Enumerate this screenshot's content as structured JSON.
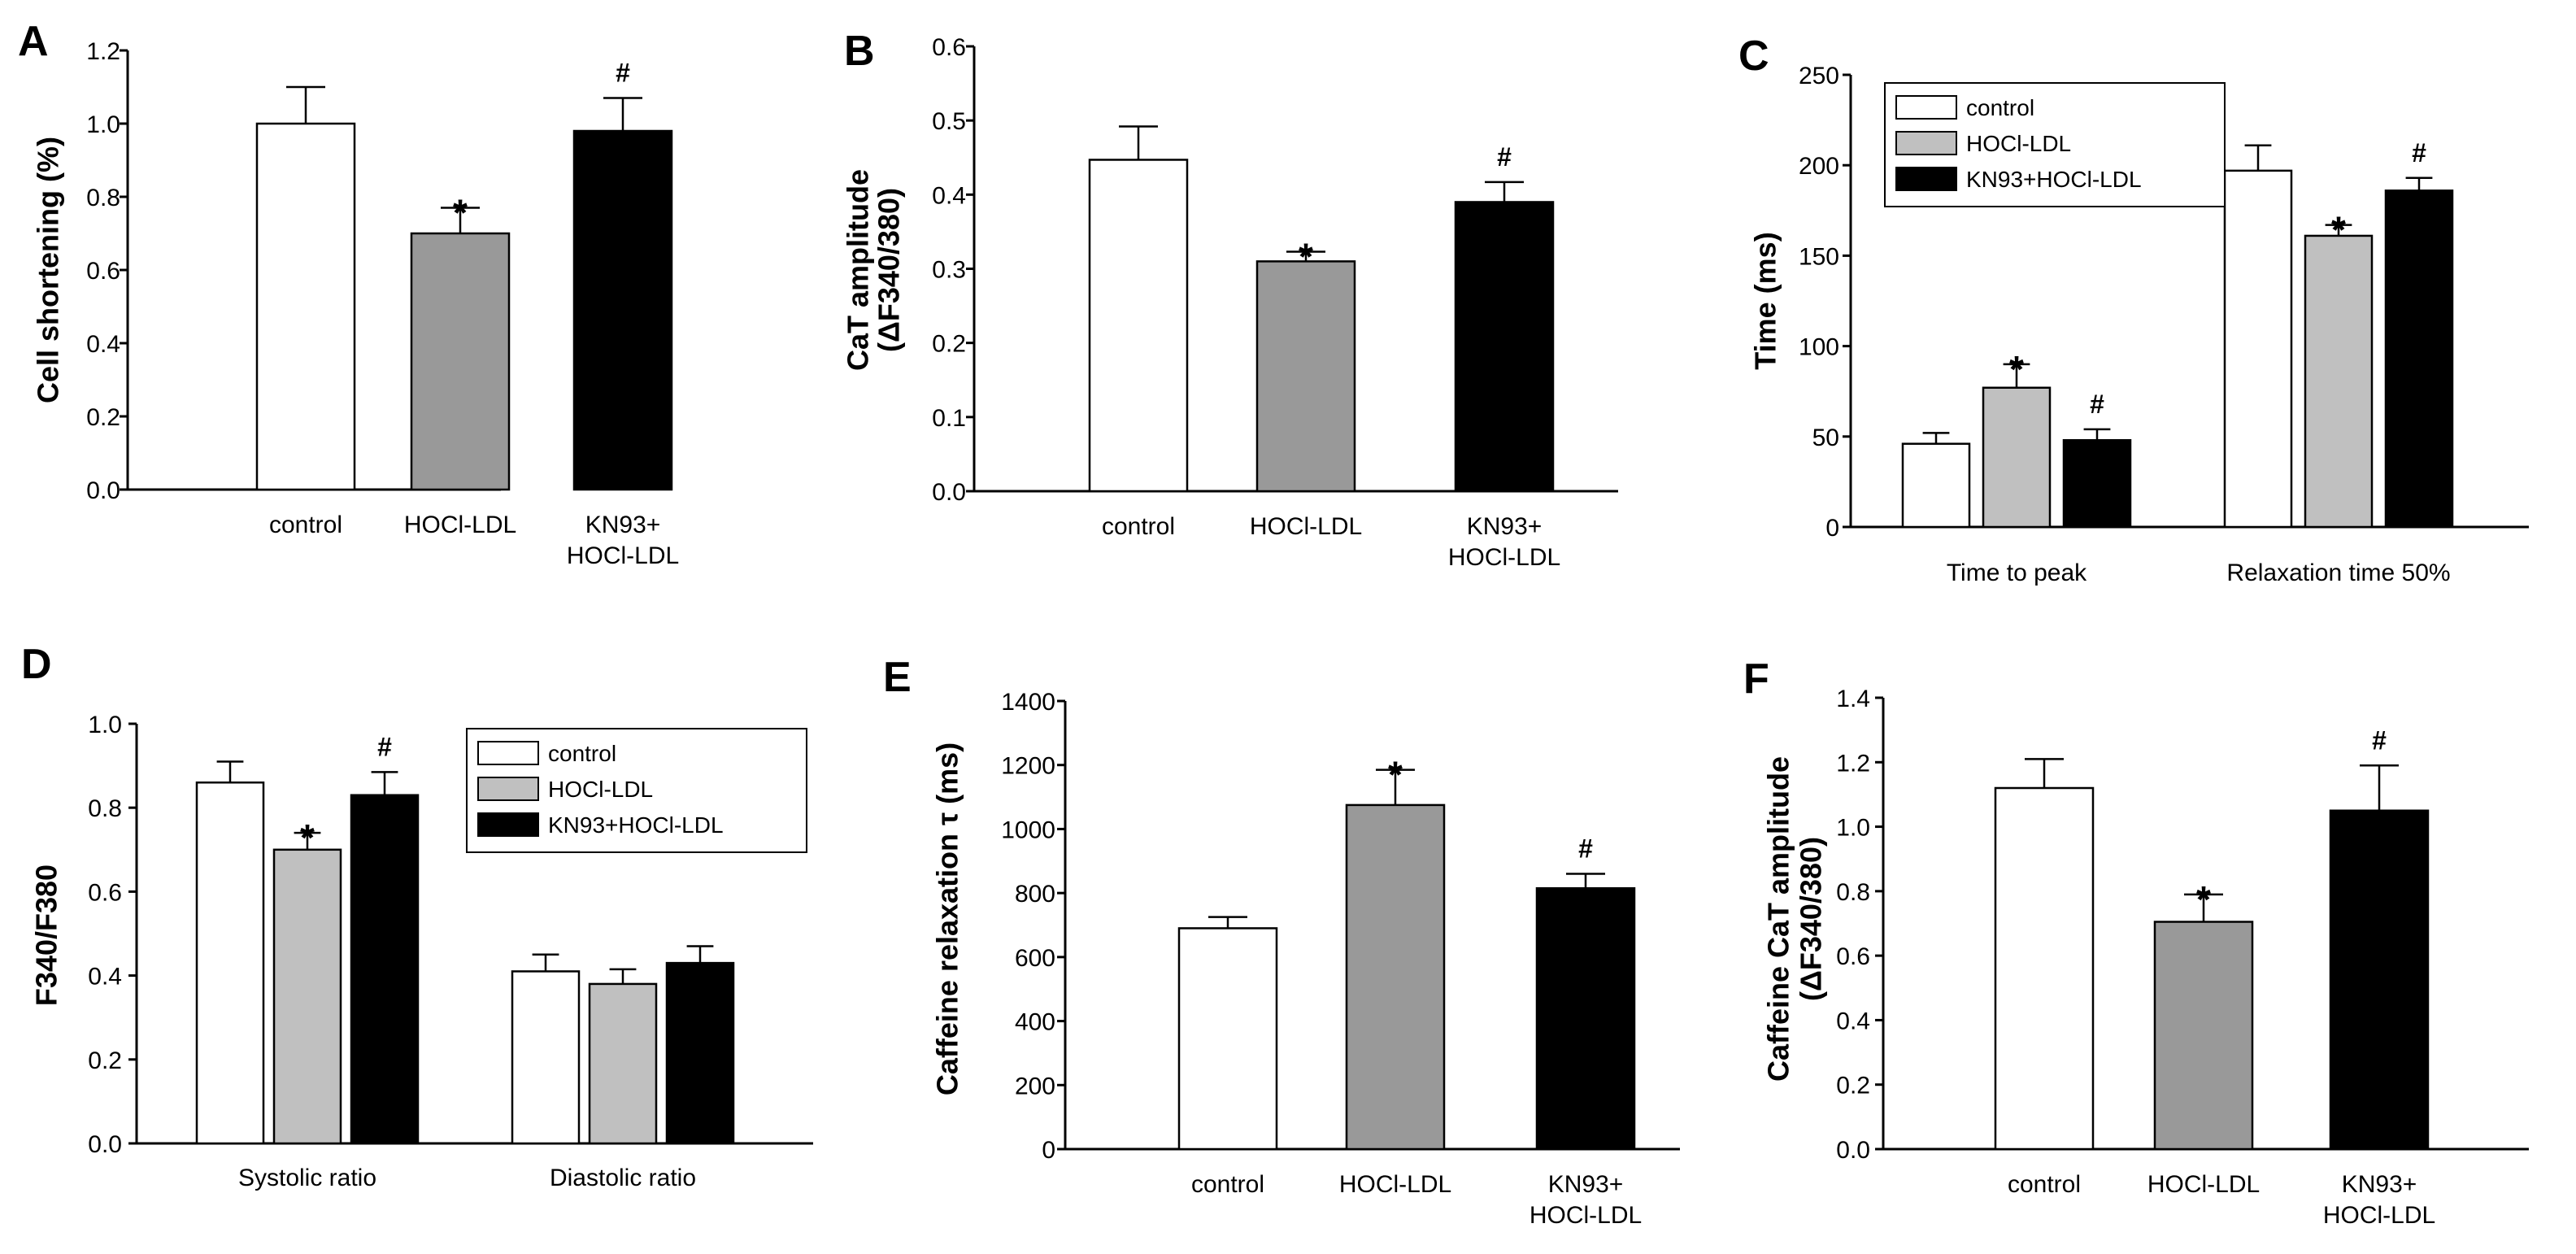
{
  "colors": {
    "control": "#ffffff",
    "hocl_ldl_dark": "#999999",
    "hocl_ldl_light": "#c0c0c0",
    "kn93": "#000000",
    "axis": "#000000"
  },
  "chart_data": [
    {
      "panel": "A",
      "type": "bar",
      "ylabel": "Cell shortening (%)",
      "ylim": [
        0,
        1.2
      ],
      "ytick_step": 0.2,
      "ytick_labels": [
        "0.0",
        "0.2",
        "0.4",
        "0.6",
        "0.8",
        "1.0",
        "1.2"
      ],
      "categories": [
        [
          "control"
        ],
        [
          "HOCl-LDL"
        ],
        [
          "KN93+",
          "HOCl-LDL"
        ]
      ],
      "values": [
        1.0,
        0.7,
        0.98
      ],
      "errors": [
        0.1,
        0.07,
        0.09
      ],
      "marks": [
        "",
        "*",
        "#"
      ],
      "bar_colors": [
        "control",
        "hocl_ldl_dark",
        "kn93"
      ]
    },
    {
      "panel": "B",
      "type": "bar",
      "ylabel": "CaT amplitude",
      "ylabel2": "(ΔF340/380)",
      "ylim": [
        0,
        0.6
      ],
      "ytick_step": 0.1,
      "ytick_labels": [
        "0.0",
        "0.1",
        "0.2",
        "0.3",
        "0.4",
        "0.5",
        "0.6"
      ],
      "categories": [
        [
          "control"
        ],
        [
          "HOCl-LDL"
        ],
        [
          "KN93+",
          "HOCl-LDL"
        ]
      ],
      "values": [
        0.447,
        0.31,
        0.39
      ],
      "errors": [
        0.045,
        0.013,
        0.027
      ],
      "marks": [
        "",
        "*",
        "#"
      ],
      "bar_colors": [
        "control",
        "hocl_ldl_dark",
        "kn93"
      ]
    },
    {
      "panel": "C",
      "type": "bar",
      "ylabel": "Time (ms)",
      "ylim": [
        0,
        250
      ],
      "ytick_step": 50,
      "ytick_labels": [
        "0",
        "50",
        "100",
        "150",
        "200",
        "250"
      ],
      "groups": [
        "Time to peak",
        "Relaxation time 50%"
      ],
      "series": [
        {
          "name": "control",
          "values": [
            46,
            197
          ],
          "errors": [
            6,
            14
          ],
          "marks": [
            "",
            ""
          ],
          "color": "control"
        },
        {
          "name": "HOCl-LDL",
          "values": [
            77,
            161
          ],
          "errors": [
            13,
            6
          ],
          "marks": [
            "*",
            "*"
          ],
          "color": "hocl_ldl_light"
        },
        {
          "name": "KN93+HOCl-LDL",
          "values": [
            48,
            186
          ],
          "errors": [
            6,
            7
          ],
          "marks": [
            "#",
            "#"
          ],
          "color": "kn93"
        }
      ],
      "legend_position": "top-left"
    },
    {
      "panel": "D",
      "type": "bar",
      "ylabel": "F340/F380",
      "ylim": [
        0,
        1.0
      ],
      "ytick_step": 0.2,
      "ytick_labels": [
        "0.0",
        "0.2",
        "0.4",
        "0.6",
        "0.8",
        "1.0"
      ],
      "groups": [
        "Systolic ratio",
        "Diastolic ratio"
      ],
      "series": [
        {
          "name": "control",
          "values": [
            0.86,
            0.41
          ],
          "errors": [
            0.05,
            0.04
          ],
          "marks": [
            "",
            ""
          ],
          "color": "control"
        },
        {
          "name": "HOCl-LDL",
          "values": [
            0.7,
            0.38
          ],
          "errors": [
            0.04,
            0.035
          ],
          "marks": [
            "*",
            ""
          ],
          "color": "hocl_ldl_light"
        },
        {
          "name": "KN93+HOCl-LDL",
          "values": [
            0.83,
            0.43
          ],
          "errors": [
            0.055,
            0.04
          ],
          "marks": [
            "#",
            ""
          ],
          "color": "kn93"
        }
      ],
      "legend_position": "top-right"
    },
    {
      "panel": "E",
      "type": "bar",
      "ylabel": "Caffeine relaxation τ (ms)",
      "ylim": [
        0,
        1400
      ],
      "ytick_step": 200,
      "ytick_labels": [
        "0",
        "200",
        "400",
        "600",
        "800",
        "1000",
        "1200",
        "1400"
      ],
      "categories": [
        [
          "control"
        ],
        [
          "HOCl-LDL"
        ],
        [
          "KN93+",
          "HOCl-LDL"
        ]
      ],
      "values": [
        690,
        1075,
        815
      ],
      "errors": [
        35,
        110,
        45
      ],
      "marks": [
        "",
        "*",
        "#"
      ],
      "bar_colors": [
        "control",
        "hocl_ldl_dark",
        "kn93"
      ]
    },
    {
      "panel": "F",
      "type": "bar",
      "ylabel": "Caffeine CaT amplitude",
      "ylabel2": "(ΔF340/380)",
      "ylim": [
        0,
        1.4
      ],
      "ytick_step": 0.2,
      "ytick_labels": [
        "0.0",
        "0.2",
        "0.4",
        "0.6",
        "0.8",
        "1.0",
        "1.2",
        "1.4"
      ],
      "categories": [
        [
          "control"
        ],
        [
          "HOCl-LDL"
        ],
        [
          "KN93+",
          "HOCl-LDL"
        ]
      ],
      "values": [
        1.12,
        0.705,
        1.05
      ],
      "errors": [
        0.09,
        0.085,
        0.14
      ],
      "marks": [
        "",
        "*",
        "#"
      ],
      "bar_colors": [
        "control",
        "hocl_ldl_dark",
        "kn93"
      ]
    }
  ]
}
